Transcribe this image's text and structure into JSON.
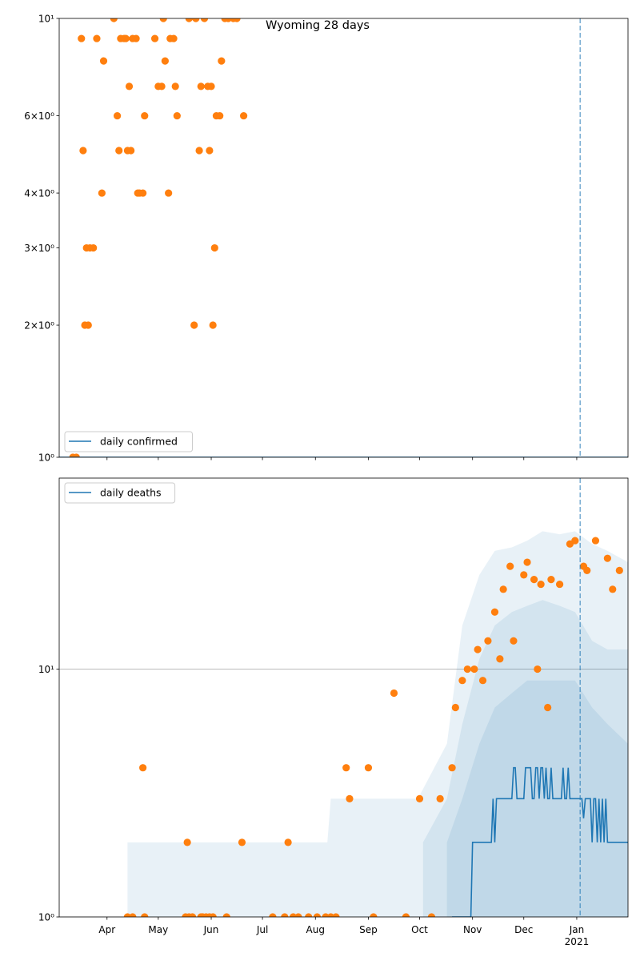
{
  "chart_data": [
    {
      "type": "line",
      "title": "Wyoming 28 days",
      "yscale": "log",
      "legend": "lower left",
      "vline": "2021-01-03",
      "vline_color": "#1f77b4",
      "xlim": [
        "2020-03-04",
        "2021-01-31"
      ],
      "ylim": [
        1,
        10
      ],
      "yticks": [
        {
          "value": 1,
          "label": "10⁰"
        },
        {
          "value": 2,
          "label": "2×10⁰"
        },
        {
          "value": 3,
          "label": "3×10⁰"
        },
        {
          "value": 4,
          "label": "4×10⁰"
        },
        {
          "value": 6,
          "label": "6×10⁰"
        },
        {
          "value": 10,
          "label": "10¹"
        }
      ],
      "series": [
        {
          "name": "daily confirmed",
          "color": "#1f77b4",
          "x": [
            "2020-03-04",
            "2021-01-31"
          ],
          "values": [
            1,
            1
          ]
        }
      ],
      "scatter": {
        "color": "#ff7f0e",
        "x": [
          "2020-03-12",
          "2020-03-14",
          "2020-03-17",
          "2020-03-18",
          "2020-03-19",
          "2020-03-20",
          "2020-03-21",
          "2020-03-22",
          "2020-03-24",
          "2020-03-26",
          "2020-03-29",
          "2020-03-30",
          "2020-04-05",
          "2020-04-07",
          "2020-04-08",
          "2020-04-09",
          "2020-04-11",
          "2020-04-12",
          "2020-04-13",
          "2020-04-14",
          "2020-04-15",
          "2020-04-16",
          "2020-04-18",
          "2020-04-19",
          "2020-04-20",
          "2020-04-22",
          "2020-04-23",
          "2020-04-29",
          "2020-05-01",
          "2020-05-03",
          "2020-05-04",
          "2020-05-05",
          "2020-05-07",
          "2020-05-08",
          "2020-05-10",
          "2020-05-11",
          "2020-05-12",
          "2020-05-19",
          "2020-05-22",
          "2020-05-23",
          "2020-05-25",
          "2020-05-26",
          "2020-05-28",
          "2020-05-30",
          "2020-05-31",
          "2020-06-01",
          "2020-06-02",
          "2020-06-03",
          "2020-06-04",
          "2020-06-06",
          "2020-06-07",
          "2020-06-09",
          "2020-06-11",
          "2020-06-14",
          "2020-06-16",
          "2020-06-20"
        ],
        "values": [
          1,
          1,
          9,
          5,
          2,
          3,
          2,
          3,
          3,
          9,
          4,
          8,
          10,
          6,
          5,
          9,
          9,
          9,
          5,
          7,
          5,
          9,
          9,
          4,
          4,
          4,
          6,
          9,
          7,
          7,
          10,
          8,
          4,
          9,
          9,
          7,
          6,
          10,
          2,
          10,
          5,
          7,
          10,
          7,
          5,
          7,
          2,
          3,
          6,
          6,
          8,
          10,
          10,
          10,
          10,
          6
        ]
      }
    },
    {
      "type": "line",
      "yscale": "log",
      "legend": "upper left",
      "grid": true,
      "vline": "2021-01-03",
      "vline_color": "#1f77b4",
      "xlim": [
        "2020-03-04",
        "2021-01-31"
      ],
      "ylim": [
        1,
        59
      ],
      "xticks": [
        {
          "value": "2020-04-01",
          "label": "Apr"
        },
        {
          "value": "2020-05-01",
          "label": "May"
        },
        {
          "value": "2020-06-01",
          "label": "Jun"
        },
        {
          "value": "2020-07-01",
          "label": "Jul"
        },
        {
          "value": "2020-08-01",
          "label": "Aug"
        },
        {
          "value": "2020-09-01",
          "label": "Sep"
        },
        {
          "value": "2020-10-01",
          "label": "Oct"
        },
        {
          "value": "2020-11-01",
          "label": "Nov"
        },
        {
          "value": "2020-12-01",
          "label": "Dec"
        },
        {
          "value": "2021-01-01",
          "label": "Jan\n2021"
        }
      ],
      "yticks": [
        {
          "value": 1,
          "label": "10⁰"
        },
        {
          "value": 10,
          "label": "10¹"
        }
      ],
      "bands": [
        {
          "color": "#1f77b4",
          "x": [
            "2020-04-13",
            "2020-08-08",
            "2020-08-10",
            "2020-09-30",
            "2020-10-17",
            "2020-10-26",
            "2020-11-05",
            "2020-11-14",
            "2020-11-24",
            "2020-12-03",
            "2020-12-12",
            "2020-12-22",
            "2020-12-31",
            "2021-01-10",
            "2021-01-19",
            "2021-01-31"
          ],
          "lower": [
            1,
            1,
            1,
            1,
            1,
            1,
            1,
            1,
            1,
            1,
            1,
            1,
            1,
            1,
            1,
            1
          ],
          "upper": [
            2,
            2,
            3,
            3,
            5,
            15,
            24,
            30,
            31,
            33,
            36,
            35,
            36,
            32,
            30,
            27
          ]
        },
        {
          "color": "#1f77b4",
          "x": [
            "2020-10-03",
            "2020-10-17",
            "2020-10-26",
            "2020-11-05",
            "2020-11-14",
            "2020-11-24",
            "2020-12-03",
            "2020-12-12",
            "2020-12-22",
            "2020-12-31",
            "2021-01-10",
            "2021-01-19",
            "2021-01-31"
          ],
          "lower": [
            1,
            1,
            1,
            1,
            1,
            1,
            1,
            1,
            1,
            1,
            1,
            1,
            1
          ],
          "upper": [
            2,
            3,
            6,
            11,
            15,
            17,
            18,
            19,
            18,
            17,
            13,
            12,
            12
          ]
        },
        {
          "color": "#1f77b4",
          "x": [
            "2020-10-17",
            "2020-10-26",
            "2020-11-05",
            "2020-11-14",
            "2020-11-24",
            "2020-12-03",
            "2020-12-12",
            "2020-12-22",
            "2020-12-31",
            "2021-01-10",
            "2021-01-19",
            "2021-01-31"
          ],
          "lower": [
            1,
            1,
            1,
            1,
            1,
            1,
            1,
            1,
            1,
            1,
            1,
            1
          ],
          "upper": [
            2,
            3,
            5,
            7,
            8,
            9,
            9,
            9,
            9,
            7,
            6,
            5
          ]
        }
      ],
      "series": [
        {
          "name": "daily deaths",
          "color": "#1f77b4",
          "x": [
            "2020-10-20",
            "2020-10-21",
            "2020-10-22",
            "2020-10-23",
            "2020-10-24",
            "2020-10-25",
            "2020-10-26",
            "2020-10-27",
            "2020-10-28",
            "2020-10-29",
            "2020-10-30",
            "2020-10-31",
            "2020-11-01",
            "2020-11-02",
            "2020-11-03",
            "2020-11-04",
            "2020-11-05",
            "2020-11-06",
            "2020-11-07",
            "2020-11-08",
            "2020-11-09",
            "2020-11-10",
            "2020-11-11",
            "2020-11-12",
            "2020-11-13",
            "2020-11-14",
            "2020-11-15",
            "2020-11-16",
            "2020-11-17",
            "2020-11-18",
            "2020-11-19",
            "2020-11-20",
            "2020-11-21",
            "2020-11-22",
            "2020-11-23",
            "2020-11-24",
            "2020-11-25",
            "2020-11-26",
            "2020-11-27",
            "2020-11-28",
            "2020-11-29",
            "2020-11-30",
            "2020-12-01",
            "2020-12-02",
            "2020-12-03",
            "2020-12-04",
            "2020-12-05",
            "2020-12-06",
            "2020-12-07",
            "2020-12-08",
            "2020-12-09",
            "2020-12-10",
            "2020-12-11",
            "2020-12-12",
            "2020-12-13",
            "2020-12-14",
            "2020-12-15",
            "2020-12-16",
            "2020-12-17",
            "2020-12-18",
            "2020-12-19",
            "2020-12-20",
            "2020-12-21",
            "2020-12-22",
            "2020-12-23",
            "2020-12-24",
            "2020-12-25",
            "2020-12-26",
            "2020-12-27",
            "2020-12-28",
            "2020-12-29",
            "2020-12-30",
            "2020-12-31",
            "2021-01-01",
            "2021-01-02",
            "2021-01-03",
            "2021-01-04",
            "2021-01-05",
            "2021-01-06",
            "2021-01-07",
            "2021-01-08",
            "2021-01-09",
            "2021-01-10",
            "2021-01-11",
            "2021-01-12",
            "2021-01-13",
            "2021-01-14",
            "2021-01-15",
            "2021-01-16",
            "2021-01-17",
            "2021-01-18",
            "2021-01-19",
            "2021-01-20",
            "2021-01-21",
            "2021-01-22",
            "2021-01-23",
            "2021-01-24",
            "2021-01-25",
            "2021-01-26",
            "2021-01-27",
            "2021-01-28",
            "2021-01-29",
            "2021-01-30",
            "2021-01-31"
          ],
          "values": [
            1,
            1,
            1,
            1,
            1,
            1,
            1,
            1,
            1,
            1,
            1,
            1,
            2,
            2,
            2,
            2,
            2,
            2,
            2,
            2,
            2,
            2,
            2,
            2,
            3,
            2,
            3,
            3,
            3,
            3,
            3,
            3,
            3,
            3,
            3,
            3,
            4,
            4,
            3,
            3,
            3,
            3,
            3,
            4,
            4,
            4,
            4,
            3,
            3,
            4,
            4,
            3,
            4,
            4,
            3,
            4,
            3,
            3,
            4,
            3,
            3,
            3,
            3,
            3,
            3,
            4,
            3,
            3,
            4,
            3,
            3,
            3,
            3,
            3,
            3,
            3,
            3,
            2.5,
            3,
            3,
            3,
            3,
            2,
            3,
            3,
            2,
            3,
            2,
            3,
            2,
            3,
            2,
            2,
            2,
            2,
            2,
            2,
            2,
            2,
            2,
            2,
            2,
            2,
            2
          ]
        }
      ],
      "scatter": {
        "color": "#ff7f0e",
        "x": [
          "2020-04-13",
          "2020-04-16",
          "2020-04-22",
          "2020-04-23",
          "2020-05-17",
          "2020-05-18",
          "2020-05-19",
          "2020-05-21",
          "2020-05-26",
          "2020-05-27",
          "2020-05-29",
          "2020-05-31",
          "2020-06-02",
          "2020-06-10",
          "2020-06-19",
          "2020-07-07",
          "2020-07-14",
          "2020-07-16",
          "2020-07-19",
          "2020-07-22",
          "2020-07-28",
          "2020-08-02",
          "2020-08-07",
          "2020-08-10",
          "2020-08-13",
          "2020-08-19",
          "2020-08-21",
          "2020-09-01",
          "2020-09-04",
          "2020-09-16",
          "2020-09-23",
          "2020-10-01",
          "2020-10-08",
          "2020-10-13",
          "2020-10-20",
          "2020-10-22",
          "2020-10-26",
          "2020-10-29",
          "2020-11-02",
          "2020-11-04",
          "2020-11-07",
          "2020-11-10",
          "2020-11-14",
          "2020-11-17",
          "2020-11-19",
          "2020-11-23",
          "2020-11-25",
          "2020-12-01",
          "2020-12-03",
          "2020-12-07",
          "2020-12-09",
          "2020-12-11",
          "2020-12-15",
          "2020-12-17",
          "2020-12-22",
          "2020-12-28",
          "2020-12-31",
          "2021-01-05",
          "2021-01-07",
          "2021-01-12",
          "2021-01-19",
          "2021-01-22",
          "2021-01-26"
        ],
        "values": [
          1,
          1,
          4,
          1,
          1,
          2,
          1,
          1,
          1,
          1,
          1,
          1,
          1,
          1,
          2,
          1,
          1,
          2,
          1,
          1,
          1,
          1,
          1,
          1,
          1,
          4,
          3,
          4,
          1,
          8,
          1,
          3,
          1,
          3,
          4,
          7,
          9,
          10,
          10,
          12,
          9,
          13,
          17,
          11,
          21,
          26,
          13,
          24,
          27,
          23,
          10,
          22,
          7,
          23,
          22,
          32,
          33,
          26,
          25,
          33,
          28,
          21,
          25
        ]
      }
    }
  ]
}
